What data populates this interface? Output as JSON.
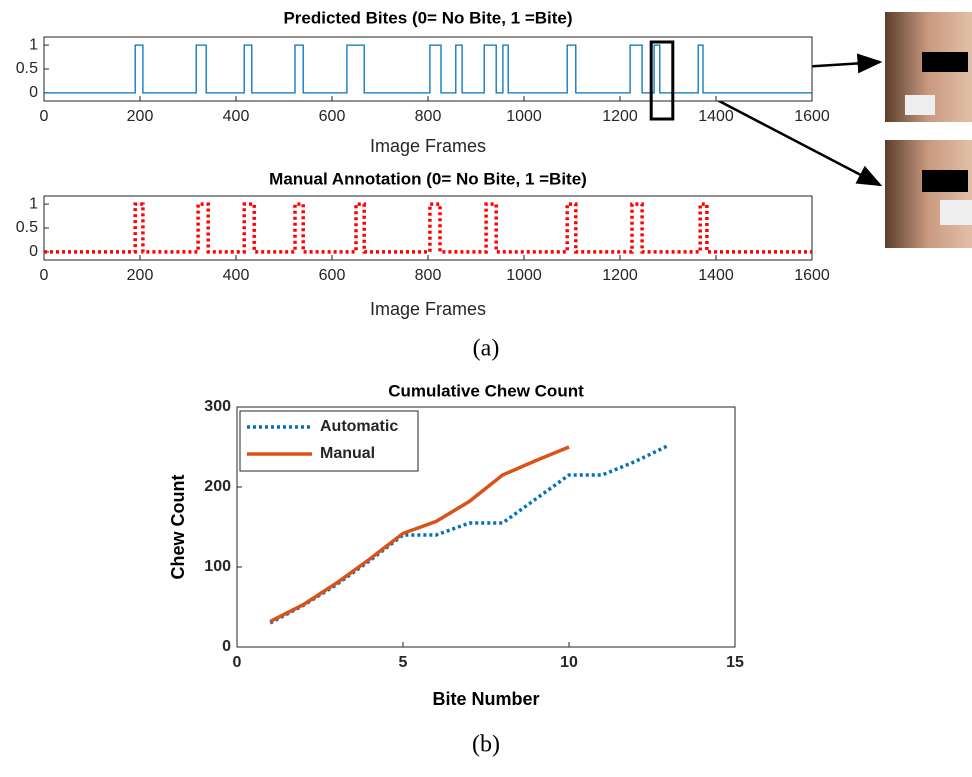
{
  "chart_data": [
    {
      "type": "line",
      "title": "Predicted Bites (0= No Bite, 1 =Bite)",
      "x_label": "Image Frames",
      "x": [
        0,
        190,
        190,
        206,
        206,
        317,
        317,
        338,
        338,
        417,
        417,
        433,
        433,
        523,
        523,
        540,
        540,
        631,
        631,
        667,
        667,
        804,
        804,
        827,
        827,
        858,
        858,
        871,
        871,
        917,
        917,
        942,
        942,
        956,
        956,
        967,
        967,
        1090,
        1090,
        1108,
        1108,
        1221,
        1221,
        1246,
        1246,
        1271,
        1271,
        1283,
        1283,
        1363,
        1363,
        1373,
        1373,
        1600
      ],
      "values": [
        0,
        0,
        1,
        1,
        0,
        0,
        1,
        1,
        0,
        0,
        1,
        1,
        0,
        0,
        1,
        1,
        0,
        0,
        1,
        1,
        0,
        0,
        1,
        1,
        0,
        0,
        1,
        1,
        0,
        0,
        1,
        1,
        0,
        0,
        1,
        1,
        0,
        0,
        1,
        1,
        0,
        0,
        1,
        1,
        0,
        0,
        1,
        1,
        0,
        0,
        1,
        1,
        0,
        0
      ],
      "color": "#0072bd",
      "line_style": "solid",
      "xlim": [
        0,
        1600
      ],
      "xticks": [
        0,
        200,
        400,
        600,
        800,
        1000,
        1200,
        1400,
        1600
      ],
      "ylim": [
        -0.17,
        1.17
      ],
      "yticks": [
        0,
        0.5,
        1
      ],
      "highlight_x": [
        1265,
        1310
      ]
    },
    {
      "type": "line",
      "title": "Manual Annotation (0= No Bite, 1 =Bite)",
      "x_label": "Image Frames",
      "x": [
        0,
        190,
        190,
        206,
        206,
        321,
        321,
        342,
        342,
        417,
        417,
        438,
        438,
        523,
        523,
        540,
        540,
        650,
        650,
        667,
        667,
        804,
        804,
        825,
        825,
        921,
        921,
        942,
        942,
        1090,
        1090,
        1108,
        1108,
        1225,
        1225,
        1246,
        1246,
        1367,
        1367,
        1381,
        1381,
        1600
      ],
      "values": [
        0,
        0,
        1,
        1,
        0,
        0,
        1,
        1,
        0,
        0,
        1,
        1,
        0,
        0,
        1,
        1,
        0,
        0,
        1,
        1,
        0,
        0,
        1,
        1,
        0,
        0,
        1,
        1,
        0,
        0,
        1,
        1,
        0,
        0,
        1,
        1,
        0,
        0,
        1,
        1,
        0,
        0
      ],
      "color": "#ff0000",
      "line_style": "dotted",
      "xlim": [
        0,
        1600
      ],
      "xticks": [
        0,
        200,
        400,
        600,
        800,
        1000,
        1200,
        1400,
        1600
      ],
      "ylim": [
        -0.17,
        1.17
      ],
      "yticks": [
        0,
        0.5,
        1
      ]
    },
    {
      "type": "line",
      "title": "Cumulative Chew Count",
      "x_label": "Bite Number",
      "y_label": "Chew Count",
      "x": [
        1,
        2,
        3,
        4,
        5,
        6,
        7,
        8,
        9,
        10,
        11,
        12,
        13
      ],
      "series": [
        {
          "name": "Automatic",
          "color": "#0072bd",
          "line_style": "dotted",
          "values": [
            30,
            52,
            78,
            108,
            140,
            140,
            155,
            155,
            185,
            215,
            215,
            232,
            252
          ]
        },
        {
          "name": "Manual",
          "color": "#d95319",
          "line_style": "solid",
          "values": [
            32,
            53,
            80,
            110,
            142,
            157,
            182,
            215,
            233,
            250,
            null,
            null,
            null
          ]
        }
      ],
      "xlim": [
        0,
        15
      ],
      "xticks": [
        0,
        5,
        10,
        15
      ],
      "ylim": [
        0,
        300
      ],
      "yticks": [
        0,
        100,
        200,
        300
      ],
      "legend": "upper-left"
    }
  ],
  "panel_labels": [
    "(a)",
    "(b)"
  ]
}
